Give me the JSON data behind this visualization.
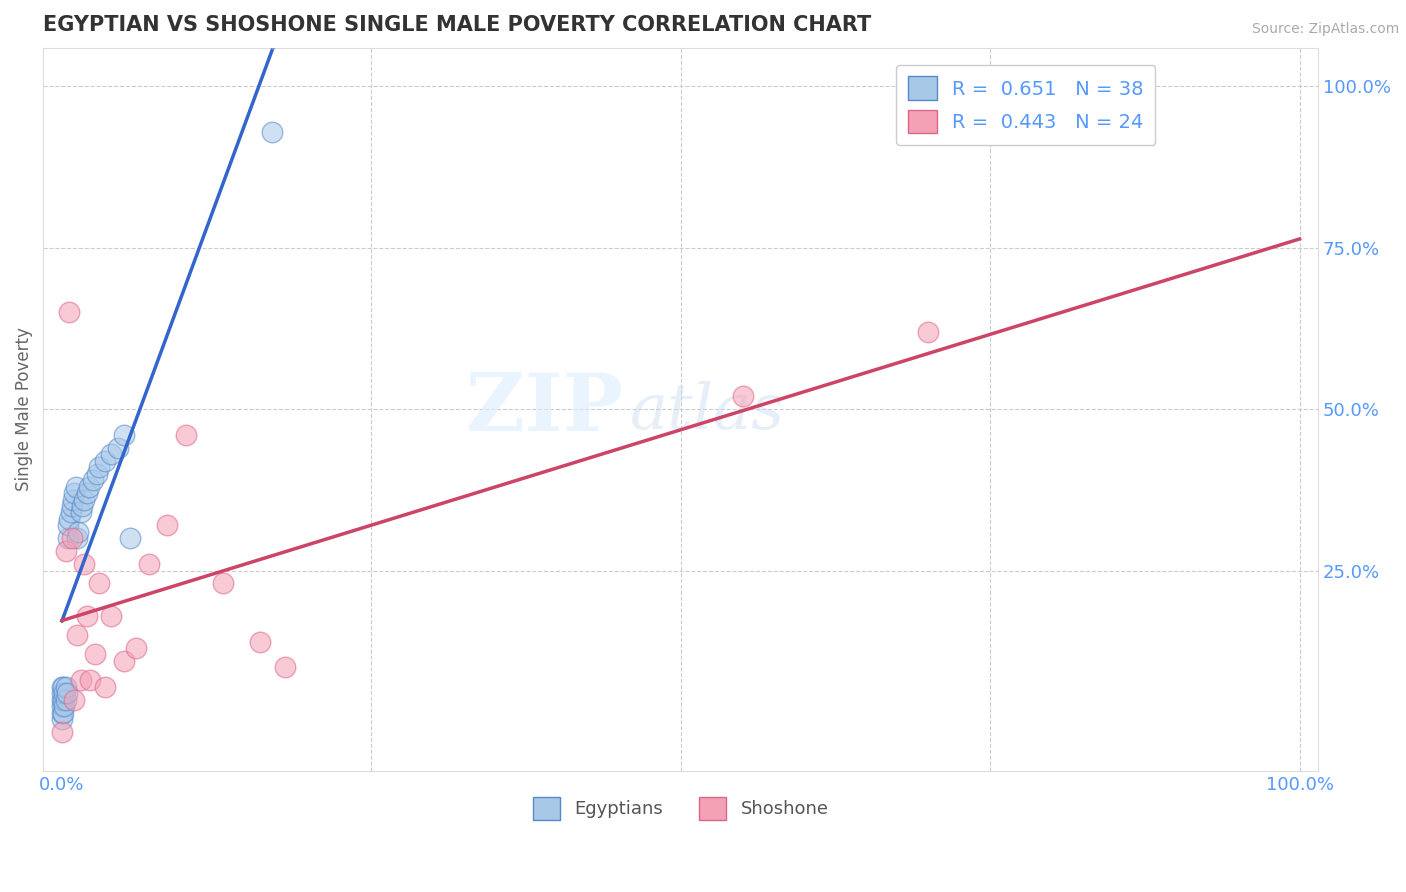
{
  "title": "EGYPTIAN VS SHOSHONE SINGLE MALE POVERTY CORRELATION CHART",
  "source": "Source: ZipAtlas.com",
  "ylabel": "Single Male Poverty",
  "blue_R": 0.651,
  "blue_N": 38,
  "pink_R": 0.443,
  "pink_N": 24,
  "blue_color": "#a8c8e8",
  "pink_color": "#f4a0b5",
  "blue_line_color": "#3366cc",
  "pink_line_color": "#cc4466",
  "blue_edge_color": "#5588cc",
  "pink_edge_color": "#dd6688",
  "legend_blue_text": "R =  0.651   N = 38",
  "legend_pink_text": "R =  0.443   N = 24",
  "egyptians_label": "Egyptians",
  "shoshone_label": "Shoshone",
  "watermark_zip": "ZIP",
  "watermark_atlas": "atlas",
  "background_color": "#ffffff",
  "grid_color": "#cccccc",
  "tick_color": "#5599ff",
  "title_color": "#333333",
  "ylabel_color": "#666666",
  "blue_x": [
    0.0,
    0.0,
    0.0,
    0.0,
    0.0,
    0.0,
    0.001,
    0.001,
    0.001,
    0.002,
    0.002,
    0.003,
    0.003,
    0.004,
    0.005,
    0.005,
    0.006,
    0.007,
    0.008,
    0.009,
    0.01,
    0.011,
    0.012,
    0.013,
    0.015,
    0.016,
    0.018,
    0.02,
    0.022,
    0.025,
    0.028,
    0.03,
    0.035,
    0.04,
    0.045,
    0.05,
    0.055,
    0.17
  ],
  "blue_y": [
    0.02,
    0.03,
    0.04,
    0.05,
    0.06,
    0.07,
    0.03,
    0.05,
    0.07,
    0.04,
    0.06,
    0.05,
    0.07,
    0.06,
    0.3,
    0.32,
    0.33,
    0.34,
    0.35,
    0.36,
    0.37,
    0.38,
    0.3,
    0.31,
    0.34,
    0.35,
    0.36,
    0.37,
    0.38,
    0.39,
    0.4,
    0.41,
    0.42,
    0.43,
    0.44,
    0.46,
    0.3,
    0.93
  ],
  "pink_x": [
    0.0,
    0.003,
    0.006,
    0.008,
    0.01,
    0.012,
    0.015,
    0.018,
    0.02,
    0.023,
    0.027,
    0.03,
    0.035,
    0.04,
    0.05,
    0.06,
    0.07,
    0.085,
    0.1,
    0.13,
    0.16,
    0.18,
    0.55,
    0.7
  ],
  "pink_y": [
    0.0,
    0.28,
    0.65,
    0.3,
    0.05,
    0.15,
    0.08,
    0.26,
    0.18,
    0.08,
    0.12,
    0.23,
    0.07,
    0.18,
    0.11,
    0.13,
    0.26,
    0.32,
    0.46,
    0.23,
    0.14,
    0.1,
    0.52,
    0.62
  ]
}
